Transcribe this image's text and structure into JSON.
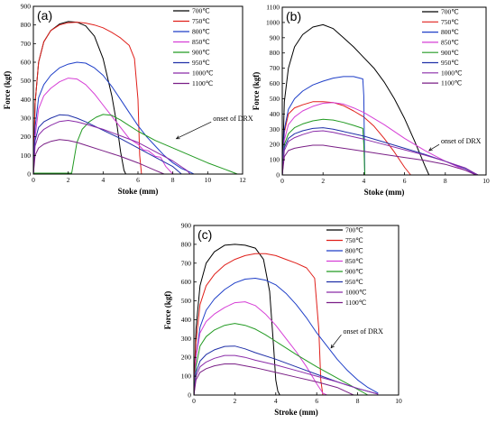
{
  "colors": {
    "700": "#000000",
    "750": "#e0201b",
    "800": "#1f3fc8",
    "850": "#d63fd6",
    "900": "#229a22",
    "950": "#2030a8",
    "1000": "#8a2ba8",
    "1100": "#7a1f86"
  },
  "chart_data": [
    {
      "type": "line",
      "panel_label": "(a)",
      "xlabel": "Stoke (mm)",
      "ylabel": "Force (kgf)",
      "xlim": [
        0,
        12
      ],
      "ylim": [
        0,
        900
      ],
      "xticks": [
        0,
        2,
        4,
        6,
        8,
        10,
        12
      ],
      "yticks": [
        0,
        100,
        200,
        300,
        400,
        500,
        600,
        700,
        800,
        900
      ],
      "legend_position": "top-right",
      "annotation": {
        "text": "onset of DRX",
        "point": [
          8.2,
          190
        ],
        "label_at": [
          10.2,
          280
        ]
      },
      "series": [
        {
          "name": "700℃",
          "color_key": "700",
          "x": [
            0,
            0.1,
            0.3,
            0.6,
            1.0,
            1.5,
            2.0,
            2.5,
            3.0,
            3.5,
            4.0,
            4.5,
            4.8,
            5.0,
            5.2,
            5.3
          ],
          "y": [
            0,
            380,
            600,
            710,
            770,
            805,
            818,
            815,
            795,
            740,
            620,
            420,
            260,
            120,
            20,
            0
          ]
        },
        {
          "name": "750℃",
          "color_key": "750",
          "x": [
            0,
            0.1,
            0.3,
            0.6,
            1.0,
            1.5,
            2.0,
            2.5,
            3.0,
            3.5,
            4.0,
            4.5,
            5.0,
            5.5,
            5.8,
            6.0,
            6.1,
            6.2
          ],
          "y": [
            0,
            380,
            600,
            710,
            770,
            800,
            812,
            815,
            810,
            800,
            785,
            760,
            730,
            690,
            620,
            400,
            100,
            0
          ]
        },
        {
          "name": "800℃",
          "color_key": "800",
          "x": [
            0,
            0.1,
            0.3,
            0.6,
            1.0,
            1.5,
            2.0,
            2.5,
            3.0,
            3.5,
            4.0,
            4.5,
            5.0,
            5.5,
            6.0,
            6.5,
            7.0,
            7.5,
            8.0,
            8.5,
            9.0,
            9.2
          ],
          "y": [
            0,
            250,
            410,
            480,
            530,
            570,
            590,
            600,
            595,
            570,
            530,
            470,
            400,
            330,
            260,
            200,
            150,
            100,
            60,
            30,
            10,
            0
          ]
        },
        {
          "name": "850℃",
          "color_key": "850",
          "x": [
            0,
            0.1,
            0.3,
            0.6,
            1.0,
            1.5,
            2.0,
            2.5,
            3.0,
            3.5,
            4.0,
            4.5,
            5.0,
            5.5,
            6.0,
            6.3,
            6.6,
            7.0,
            7.3,
            7.6,
            8.0
          ],
          "y": [
            0,
            200,
            350,
            420,
            460,
            495,
            515,
            510,
            480,
            430,
            370,
            310,
            250,
            190,
            160,
            130,
            125,
            95,
            90,
            40,
            0
          ]
        },
        {
          "name": "900℃",
          "color_key": "900",
          "x": [
            0,
            2.2,
            2.5,
            2.8,
            3.2,
            3.6,
            4.0,
            4.5,
            5.0,
            5.5,
            6.0,
            7.0,
            8.0,
            9.0,
            10.0,
            11.0,
            11.7
          ],
          "y": [
            5,
            5,
            170,
            240,
            280,
            305,
            320,
            315,
            290,
            260,
            230,
            180,
            140,
            100,
            60,
            25,
            0
          ]
        },
        {
          "name": "950℃",
          "color_key": "950",
          "x": [
            0,
            0.1,
            0.3,
            0.6,
            1.0,
            1.5,
            2.0,
            2.5,
            3.0,
            4.0,
            5.0,
            6.0,
            7.0,
            8.0,
            8.5
          ],
          "y": [
            0,
            180,
            250,
            280,
            300,
            318,
            315,
            300,
            280,
            235,
            190,
            140,
            90,
            40,
            0
          ]
        },
        {
          "name": "1000℃",
          "color_key": "1000",
          "x": [
            0,
            0.1,
            0.3,
            0.6,
            1.0,
            1.5,
            2.0,
            2.5,
            3.0,
            4.0,
            5.0,
            6.0,
            7.0,
            8.0,
            8.8,
            9.0
          ],
          "y": [
            0,
            150,
            210,
            240,
            262,
            282,
            288,
            280,
            268,
            240,
            205,
            170,
            120,
            70,
            20,
            0
          ]
        },
        {
          "name": "1100℃",
          "color_key": "1100",
          "x": [
            0,
            0.1,
            0.3,
            0.6,
            1.0,
            1.5,
            2.0,
            2.5,
            3.0,
            4.0,
            5.0,
            6.0,
            7.0,
            7.5
          ],
          "y": [
            0,
            100,
            140,
            160,
            175,
            185,
            180,
            170,
            155,
            125,
            95,
            60,
            20,
            0
          ]
        }
      ]
    },
    {
      "type": "line",
      "panel_label": "(b)",
      "xlabel": "Stoke (mm)",
      "ylabel": "Force (kgf)",
      "xlim": [
        0,
        10
      ],
      "ylim": [
        0,
        1100
      ],
      "xticks": [
        0,
        2,
        4,
        6,
        8,
        10
      ],
      "yticks": [
        0,
        100,
        200,
        300,
        400,
        500,
        600,
        700,
        800,
        900,
        1000,
        1100
      ],
      "legend_position": "top-right",
      "annotation": {
        "text": "onset of DRX",
        "point": [
          7.2,
          160
        ],
        "label_at": [
          7.7,
          200
        ]
      },
      "series": [
        {
          "name": "700℃",
          "color_key": "700",
          "x": [
            0,
            0.1,
            0.3,
            0.6,
            1.0,
            1.5,
            2.0,
            2.5,
            3.0,
            3.5,
            4.0,
            4.5,
            5.0,
            5.5,
            6.0,
            6.5,
            7.0,
            7.2
          ],
          "y": [
            0,
            480,
            700,
            840,
            920,
            970,
            985,
            960,
            900,
            840,
            770,
            700,
            610,
            500,
            370,
            220,
            60,
            0
          ]
        },
        {
          "name": "750℃",
          "color_key": "750",
          "x": [
            0,
            0.1,
            0.3,
            0.6,
            1.0,
            1.5,
            2.0,
            2.5,
            3.0,
            3.5,
            4.0,
            4.5,
            5.0,
            5.5,
            6.0,
            6.3
          ],
          "y": [
            0,
            280,
            400,
            440,
            460,
            480,
            480,
            475,
            455,
            420,
            380,
            320,
            240,
            150,
            50,
            0
          ]
        },
        {
          "name": "800℃",
          "color_key": "800",
          "x": [
            0,
            0.1,
            0.3,
            0.6,
            1.0,
            1.5,
            2.0,
            2.5,
            3.0,
            3.5,
            3.95,
            4.0,
            4.05
          ],
          "y": [
            0,
            300,
            430,
            500,
            550,
            590,
            615,
            635,
            645,
            645,
            630,
            520,
            0
          ]
        },
        {
          "name": "850℃",
          "color_key": "850",
          "x": [
            0,
            0.1,
            0.3,
            0.6,
            1.0,
            1.5,
            2.0,
            2.5,
            3.0,
            3.5,
            4.0,
            5.0,
            6.0,
            7.0,
            8.0,
            9.0,
            9.6
          ],
          "y": [
            0,
            230,
            330,
            380,
            420,
            450,
            470,
            475,
            465,
            440,
            410,
            330,
            240,
            160,
            90,
            30,
            0
          ]
        },
        {
          "name": "900℃",
          "color_key": "900",
          "x": [
            0,
            0.1,
            0.3,
            0.6,
            1.0,
            1.5,
            2.0,
            2.5,
            3.0,
            3.5,
            3.95,
            4.0,
            4.05
          ],
          "y": [
            0,
            200,
            270,
            310,
            335,
            355,
            365,
            360,
            345,
            325,
            305,
            200,
            0
          ]
        },
        {
          "name": "950℃",
          "color_key": "950",
          "x": [
            0,
            0.1,
            0.3,
            0.6,
            1.0,
            1.5,
            2.0,
            2.5,
            3.0,
            4.0,
            5.0,
            6.0,
            7.0,
            8.0,
            9.0,
            9.6
          ],
          "y": [
            0,
            180,
            240,
            270,
            290,
            305,
            310,
            300,
            285,
            255,
            215,
            175,
            135,
            90,
            40,
            0
          ]
        },
        {
          "name": "1000℃",
          "color_key": "1000",
          "x": [
            0,
            0.1,
            0.3,
            0.6,
            1.0,
            1.5,
            2.0,
            2.5,
            3.0,
            4.0,
            5.0,
            6.0,
            7.0,
            8.0,
            9.0,
            9.6
          ],
          "y": [
            0,
            160,
            220,
            245,
            265,
            285,
            290,
            280,
            265,
            235,
            200,
            165,
            130,
            90,
            45,
            0
          ]
        },
        {
          "name": "1100℃",
          "color_key": "1100",
          "x": [
            0,
            0.1,
            0.3,
            0.6,
            1.0,
            1.5,
            2.0,
            2.5,
            3.0,
            4.0,
            5.0,
            6.0,
            7.0,
            8.0,
            9.0,
            9.5
          ],
          "y": [
            0,
            120,
            160,
            175,
            185,
            195,
            195,
            185,
            175,
            155,
            135,
            115,
            95,
            70,
            30,
            0
          ]
        }
      ]
    },
    {
      "type": "line",
      "panel_label": "(c)",
      "xlabel": "Stroke (mm)",
      "ylabel": "Force (kgf)",
      "xlim": [
        0,
        10
      ],
      "ylim": [
        0,
        900
      ],
      "xticks": [
        0,
        2,
        4,
        6,
        8,
        10
      ],
      "yticks": [
        0,
        100,
        200,
        300,
        400,
        500,
        600,
        700,
        800,
        900
      ],
      "legend_position": "top-right",
      "annotation": {
        "text": "onset of DRX",
        "point": [
          6.7,
          250
        ],
        "label_at": [
          7.2,
          320
        ]
      },
      "series": [
        {
          "name": "700℃",
          "color_key": "700",
          "x": [
            0,
            0.1,
            0.3,
            0.6,
            1.0,
            1.5,
            2.0,
            2.5,
            3.0,
            3.4,
            3.7,
            3.9,
            4.0,
            4.1,
            4.2
          ],
          "y": [
            0,
            350,
            580,
            700,
            760,
            795,
            800,
            795,
            780,
            720,
            550,
            250,
            80,
            20,
            0
          ]
        },
        {
          "name": "750℃",
          "color_key": "750",
          "x": [
            0,
            0.1,
            0.3,
            0.6,
            1.0,
            1.5,
            2.0,
            2.5,
            3.0,
            3.5,
            4.0,
            4.5,
            5.0,
            5.5,
            5.9,
            6.1,
            6.2,
            6.3
          ],
          "y": [
            0,
            280,
            480,
            580,
            640,
            690,
            720,
            740,
            750,
            750,
            740,
            720,
            700,
            675,
            620,
            350,
            80,
            0
          ]
        },
        {
          "name": "800℃",
          "color_key": "800",
          "x": [
            0,
            0.1,
            0.3,
            0.6,
            1.0,
            1.5,
            2.0,
            2.5,
            3.0,
            3.5,
            4.0,
            4.5,
            5.0,
            5.5,
            6.0,
            6.5,
            7.0,
            7.5,
            8.0,
            8.5,
            9.0
          ],
          "y": [
            0,
            200,
            360,
            450,
            510,
            560,
            595,
            615,
            620,
            610,
            585,
            540,
            480,
            410,
            330,
            260,
            190,
            130,
            80,
            40,
            10
          ]
        },
        {
          "name": "850℃",
          "color_key": "850",
          "x": [
            0,
            0.1,
            0.3,
            0.6,
            1.0,
            1.5,
            2.0,
            2.5,
            3.0,
            3.5,
            4.0,
            4.5,
            5.0,
            5.5,
            6.0,
            6.3,
            6.5
          ],
          "y": [
            0,
            200,
            330,
            390,
            430,
            465,
            490,
            495,
            475,
            430,
            370,
            300,
            230,
            150,
            60,
            10,
            0
          ]
        },
        {
          "name": "900℃",
          "color_key": "900",
          "x": [
            0,
            0.1,
            0.3,
            0.6,
            1.0,
            1.5,
            2.0,
            2.5,
            3.0,
            3.5,
            4.0,
            5.0,
            6.0,
            7.0,
            8.0,
            8.5
          ],
          "y": [
            0,
            150,
            260,
            310,
            345,
            370,
            380,
            370,
            350,
            320,
            285,
            215,
            150,
            90,
            30,
            0
          ]
        },
        {
          "name": "950℃",
          "color_key": "950",
          "x": [
            0,
            0.1,
            0.3,
            0.6,
            1.0,
            1.5,
            2.0,
            2.5,
            3.0,
            4.0,
            5.0,
            6.0,
            7.0,
            8.0,
            9.0
          ],
          "y": [
            0,
            120,
            180,
            215,
            240,
            258,
            260,
            245,
            225,
            190,
            150,
            110,
            70,
            35,
            5
          ]
        },
        {
          "name": "1000℃",
          "color_key": "1000",
          "x": [
            0,
            0.1,
            0.3,
            0.6,
            1.0,
            1.5,
            2.0,
            2.5,
            3.0,
            4.0,
            5.0,
            6.0,
            7.0,
            8.0,
            9.0
          ],
          "y": [
            0,
            100,
            150,
            175,
            195,
            210,
            210,
            200,
            185,
            160,
            130,
            100,
            70,
            35,
            5
          ]
        },
        {
          "name": "1100℃",
          "color_key": "1100",
          "x": [
            0,
            0.1,
            0.3,
            0.6,
            1.0,
            1.5,
            2.0,
            2.5,
            3.0,
            4.0,
            5.0,
            6.0,
            7.0,
            7.8
          ],
          "y": [
            0,
            80,
            120,
            140,
            155,
            165,
            165,
            155,
            145,
            120,
            95,
            70,
            40,
            0
          ]
        }
      ]
    }
  ]
}
